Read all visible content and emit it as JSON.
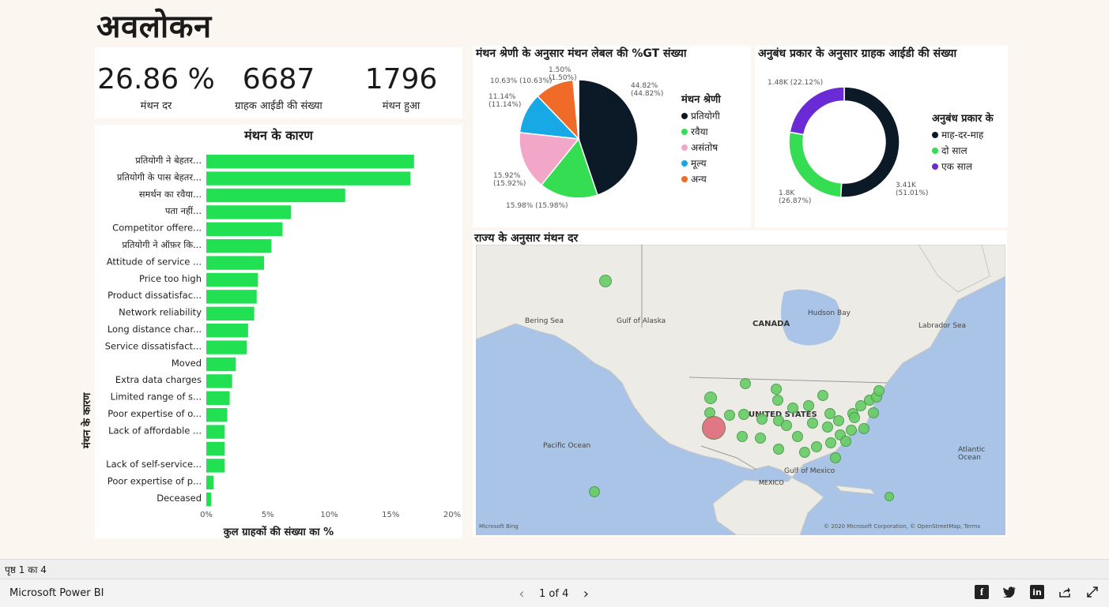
{
  "page": {
    "title": "अवलोकन",
    "page_indicator": "पृष्ठ 1 का 4"
  },
  "kpis": [
    {
      "value": "26.86 %",
      "label": "मंथन दर"
    },
    {
      "value": "6687",
      "label": "ग्राहक आईडी की संख्या"
    },
    {
      "value": "1796",
      "label": "मंथन हुआ"
    }
  ],
  "chart_data": [
    {
      "type": "bar",
      "orientation": "horizontal",
      "title": "मंथन के कारण",
      "xlabel": "कुल ग्राहकों की संख्या का %",
      "ylabel": "मंथन के कारण",
      "xlim": [
        0,
        20
      ],
      "xticks": [
        "0%",
        "5%",
        "10%",
        "15%",
        "20%"
      ],
      "color": "#21e052",
      "categories": [
        "प्रतियोगी ने बेहतर...",
        "प्रतियोगी के पास बेहतर...",
        "समर्थन का रवैया...",
        "पता नहीं...",
        "Competitor offere...",
        "प्रतियोगी ने ऑफ़र कि...",
        "Attitude of service ...",
        "Price too high",
        "Product dissatisfac...",
        "Network reliability",
        "Long distance char...",
        "Service dissatisfact...",
        "Moved",
        "Extra data charges",
        "Limited range of s...",
        "Poor expertise of o...",
        "Lack of affordable ...",
        "",
        "Lack of self-service...",
        "Poor expertise of p...",
        "Deceased"
      ],
      "values": [
        16.9,
        16.6,
        11.3,
        6.9,
        6.2,
        5.3,
        4.7,
        4.2,
        4.1,
        3.9,
        3.4,
        3.3,
        2.4,
        2.1,
        1.9,
        1.7,
        1.5,
        1.5,
        1.5,
        0.6,
        0.4
      ]
    },
    {
      "type": "pie",
      "title": "मंथन श्रेणी के अनुसार मंथन लेबल की %GT संख्या",
      "legend_title": "मंथन श्रेणी",
      "legend_position": "right",
      "slices": [
        {
          "name": "प्रतियोगी",
          "value": 44.82,
          "color": "#0b1a26",
          "label": "44.82%",
          "sublabel": "(44.82%)"
        },
        {
          "name": "रवैया",
          "value": 15.98,
          "color": "#35dd52",
          "label": "15.98% (15.98%)",
          "sublabel": ""
        },
        {
          "name": "असंतोष",
          "value": 15.92,
          "color": "#f2a6c8",
          "label": "15.92%",
          "sublabel": "(15.92%)"
        },
        {
          "name": "मूल्य",
          "value": 11.14,
          "color": "#17a9e6",
          "label": "11.14%",
          "sublabel": "(11.14%)"
        },
        {
          "name": "अन्य",
          "value": 10.63,
          "color": "#f06a28",
          "label": "10.63% (10.63%)",
          "sublabel": ""
        },
        {
          "name": "",
          "value": 1.5,
          "color": "#ffffff",
          "label": "1.50%",
          "sublabel": "(1.50%)"
        }
      ]
    },
    {
      "type": "donut",
      "title": "अनुबंध प्रकार के अनुसार ग्राहक आईडी की संख्या",
      "legend_title": "अनुबंध प्रकार के",
      "legend_position": "right",
      "slices": [
        {
          "name": "माह-दर-माह",
          "value": 51.01,
          "color": "#0b1a26",
          "label": "3.41K",
          "sublabel": "(51.01%)"
        },
        {
          "name": "दो साल",
          "value": 26.87,
          "color": "#35dd52",
          "label": "1.8K",
          "sublabel": "(26.87%)"
        },
        {
          "name": "एक साल",
          "value": 22.12,
          "color": "#6a2bd6",
          "label": "1.48K (22.12%)",
          "sublabel": ""
        }
      ]
    }
  ],
  "map": {
    "title": "राज्य के अनुसार मंथन दर",
    "labels": {
      "canada": "CANADA",
      "usa": "UNITED STATES",
      "mexico": "MEXICO",
      "hudson": "Hudson Bay",
      "bering": "Bering Sea",
      "alaska": "Gulf of Alaska",
      "labrador": "Labrador Sea",
      "pacific": "Pacific Ocean",
      "atlantic": "Atlantic Ocean",
      "gulf": "Gulf of Mexico"
    },
    "credit": "© 2020 Microsoft Corporation, © OpenStreetMap, Terms",
    "bing": "Microsoft Bing",
    "point_color": "#66cc66",
    "highlight_color": "#e06b7a"
  },
  "footer": {
    "brand": "Microsoft Power BI",
    "pager_label": "1 of 4"
  },
  "icons": [
    "facebook-icon",
    "twitter-icon",
    "linkedin-icon",
    "share-icon",
    "fullscreen-icon"
  ]
}
